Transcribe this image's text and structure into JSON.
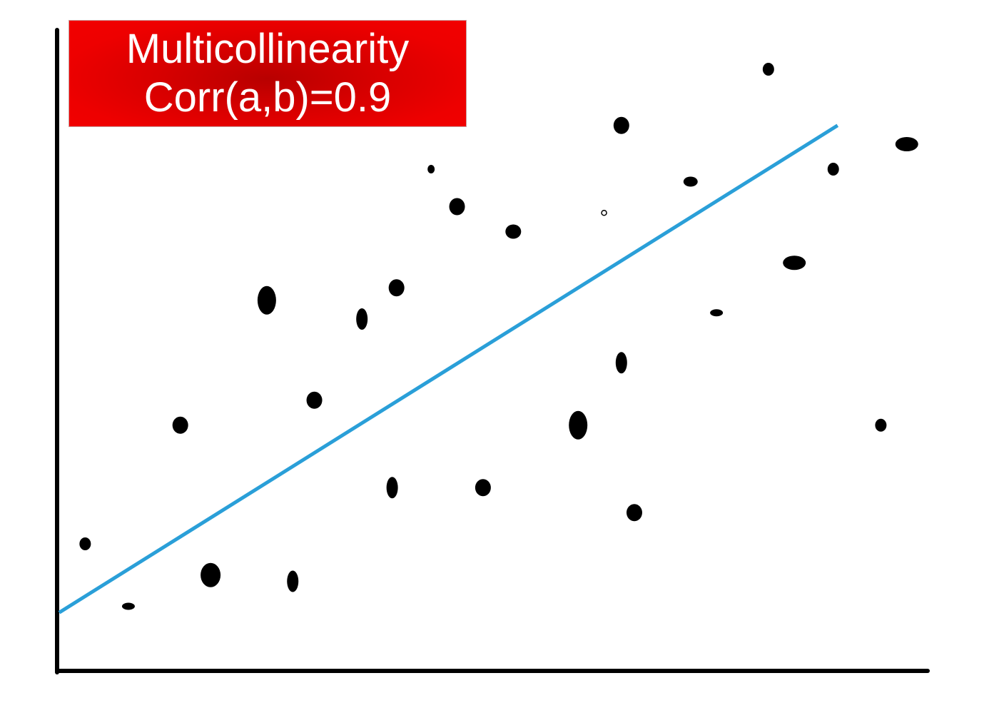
{
  "chart_data": {
    "type": "scatter",
    "title_lines": [
      "Multicollinearity",
      "Corr(a,b)=0.9"
    ],
    "xlabel": "",
    "ylabel": "",
    "grid": false,
    "legend": "none",
    "xlim": [
      0,
      100
    ],
    "ylim": [
      0,
      100
    ],
    "points": [
      {
        "x": 3,
        "y": 20,
        "size": "small"
      },
      {
        "x": 8,
        "y": 10,
        "size": "flat"
      },
      {
        "x": 14,
        "y": 39,
        "size": "medium"
      },
      {
        "x": 17.5,
        "y": 15,
        "size": "large"
      },
      {
        "x": 24,
        "y": 59,
        "size": "large-tall"
      },
      {
        "x": 27,
        "y": 14,
        "size": "tall"
      },
      {
        "x": 29.5,
        "y": 43,
        "size": "medium"
      },
      {
        "x": 35,
        "y": 56,
        "size": "tall"
      },
      {
        "x": 38.5,
        "y": 29,
        "size": "tall"
      },
      {
        "x": 39,
        "y": 61,
        "size": "medium"
      },
      {
        "x": 43,
        "y": 80,
        "size": "tiny"
      },
      {
        "x": 46,
        "y": 74,
        "size": "medium"
      },
      {
        "x": 49,
        "y": 29,
        "size": "medium"
      },
      {
        "x": 52.5,
        "y": 70,
        "size": "medium-flat"
      },
      {
        "x": 60,
        "y": 39,
        "size": "large-tall"
      },
      {
        "x": 63,
        "y": 73,
        "size": "hollow"
      },
      {
        "x": 65,
        "y": 87,
        "size": "medium"
      },
      {
        "x": 65,
        "y": 49,
        "size": "tall"
      },
      {
        "x": 66.5,
        "y": 25,
        "size": "medium"
      },
      {
        "x": 73,
        "y": 78,
        "size": "small-flat"
      },
      {
        "x": 76,
        "y": 57,
        "size": "flat"
      },
      {
        "x": 82,
        "y": 96,
        "size": "small"
      },
      {
        "x": 85,
        "y": 65,
        "size": "wide"
      },
      {
        "x": 89.5,
        "y": 80,
        "size": "small"
      },
      {
        "x": 95,
        "y": 39,
        "size": "small"
      },
      {
        "x": 98,
        "y": 84,
        "size": "wide"
      }
    ],
    "trendline": {
      "color": "#2a9fd8",
      "from": {
        "x": 0,
        "y": 9
      },
      "to": {
        "x": 90,
        "y": 87
      }
    },
    "colors": {
      "points": "#000000",
      "axes": "#000000",
      "title_bg": "#e60000",
      "title_text": "#ffffff"
    }
  }
}
